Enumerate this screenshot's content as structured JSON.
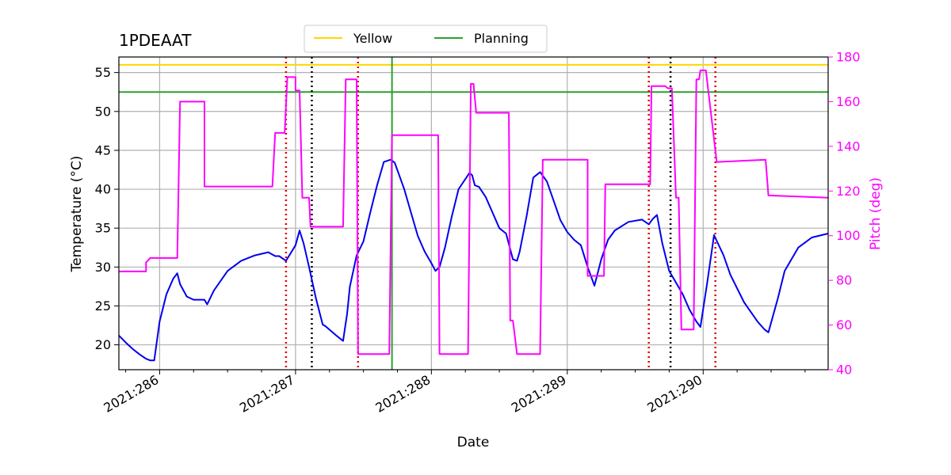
{
  "chart_data": {
    "type": "line",
    "title": "1PDEAAT",
    "xlabel": "Date",
    "ylabel": "Temperature ($^\\circ$C)",
    "ylabel_display": "Temperature (°C)",
    "y2label": "Pitch (deg)",
    "x_unit": "day of year 2021",
    "xlim": [
      285.7,
      290.92
    ],
    "ylim": [
      16.8,
      57
    ],
    "y2lim": [
      40,
      180
    ],
    "grid": true,
    "legend_position": "top-center",
    "x_ticks": [
      {
        "value": 286,
        "label": "2021:286"
      },
      {
        "value": 287,
        "label": "2021:287"
      },
      {
        "value": 288,
        "label": "2021:288"
      },
      {
        "value": 289,
        "label": "2021:289"
      },
      {
        "value": 290,
        "label": "2021:290"
      }
    ],
    "y_ticks": [
      20,
      25,
      30,
      35,
      40,
      45,
      50,
      55
    ],
    "y2_ticks": [
      40,
      60,
      80,
      100,
      120,
      140,
      160,
      180
    ],
    "x_minor_step": 0.25,
    "colors": {
      "temperature": "#0000ee",
      "pitch": "#ff00ff",
      "yellow": "#ffd700",
      "planning": "#2ca02c",
      "red_dotted": "#dd0000",
      "black_dotted": "#000000",
      "grid": "#b0b0b0"
    },
    "legend": [
      {
        "label": "Yellow",
        "color": "#ffd700"
      },
      {
        "label": "Planning",
        "color": "#2ca02c"
      }
    ],
    "hlines": [
      {
        "label": "Yellow",
        "y": 56.0,
        "color": "#ffd700"
      },
      {
        "label": "Planning",
        "y": 52.5,
        "color": "#2ca02c"
      }
    ],
    "vlines_planning": [
      287.71
    ],
    "vlines_red_dotted": [
      286.93,
      287.46,
      289.6,
      290.09
    ],
    "vlines_black_dotted": [
      287.12,
      289.76
    ],
    "series": [
      {
        "name": "Temperature",
        "axis": "left",
        "x": [
          285.7,
          285.75,
          285.8,
          285.85,
          285.9,
          285.93,
          285.96,
          286.0,
          286.05,
          286.1,
          286.13,
          286.15,
          286.2,
          286.25,
          286.3,
          286.33,
          286.35,
          286.4,
          286.5,
          286.6,
          286.7,
          286.8,
          286.85,
          286.88,
          286.93,
          287.0,
          287.03,
          287.06,
          287.1,
          287.15,
          287.2,
          287.22,
          287.3,
          287.35,
          287.38,
          287.4,
          287.45,
          287.5,
          287.55,
          287.6,
          287.65,
          287.7,
          287.73,
          287.8,
          287.85,
          287.9,
          287.95,
          288.0,
          288.03,
          288.06,
          288.1,
          288.15,
          288.2,
          288.28,
          288.3,
          288.32,
          288.35,
          288.4,
          288.45,
          288.5,
          288.55,
          288.6,
          288.63,
          288.65,
          288.7,
          288.75,
          288.8,
          288.85,
          288.9,
          288.95,
          289.0,
          289.05,
          289.1,
          289.15,
          289.2,
          289.25,
          289.3,
          289.35,
          289.45,
          289.55,
          289.6,
          289.63,
          289.66,
          289.7,
          289.75,
          289.8,
          289.85,
          289.9,
          289.95,
          289.98,
          290.03,
          290.08,
          290.15,
          290.2,
          290.3,
          290.4,
          290.45,
          290.48,
          290.55,
          290.6,
          290.7,
          290.8,
          290.92
        ],
        "y": [
          21.2,
          20.3,
          19.5,
          18.8,
          18.2,
          18.0,
          18.0,
          23.0,
          26.5,
          28.5,
          29.2,
          27.8,
          26.2,
          25.8,
          25.8,
          25.8,
          25.2,
          27.0,
          29.5,
          30.8,
          31.5,
          31.9,
          31.4,
          31.4,
          30.8,
          32.8,
          34.7,
          33.0,
          30.0,
          26.0,
          22.6,
          22.4,
          21.2,
          20.5,
          24.0,
          27.5,
          31.5,
          33.3,
          37.0,
          40.5,
          43.5,
          43.8,
          43.4,
          40.0,
          37.0,
          34.0,
          32.0,
          30.5,
          29.5,
          30.0,
          32.5,
          36.5,
          40.0,
          42.1,
          41.8,
          40.5,
          40.3,
          39.0,
          37.0,
          35.0,
          34.3,
          31.0,
          30.8,
          32.0,
          36.5,
          41.5,
          42.2,
          41.0,
          38.5,
          36.0,
          34.5,
          33.5,
          32.8,
          30.0,
          27.6,
          31.0,
          33.5,
          34.7,
          35.8,
          36.1,
          35.5,
          36.2,
          36.7,
          33.0,
          29.5,
          28.0,
          26.5,
          24.5,
          23.0,
          22.3,
          28.0,
          34.1,
          31.5,
          29.0,
          25.5,
          23.0,
          22.0,
          21.6,
          26.0,
          29.5,
          32.5,
          33.8,
          34.3
        ]
      },
      {
        "name": "Pitch",
        "axis": "right",
        "x": [
          285.7,
          285.9,
          285.9,
          285.93,
          285.93,
          286.13,
          286.15,
          286.33,
          286.33,
          286.35,
          286.35,
          286.83,
          286.85,
          286.85,
          286.92,
          286.94,
          287.0,
          287.0,
          287.03,
          287.05,
          287.05,
          287.1,
          287.11,
          287.35,
          287.37,
          287.45,
          287.46,
          287.47,
          287.69,
          287.71,
          288.05,
          288.06,
          288.27,
          288.29,
          288.31,
          288.33,
          288.35,
          288.57,
          288.58,
          288.6,
          288.6,
          288.63,
          288.64,
          288.8,
          288.82,
          289.15,
          289.15,
          289.17,
          289.27,
          289.28,
          289.61,
          289.62,
          289.72,
          289.74,
          289.77,
          289.8,
          289.82,
          289.84,
          289.93,
          289.95,
          289.97,
          289.98,
          290.02,
          290.02,
          290.1,
          290.1,
          290.46,
          290.48,
          290.92
        ],
        "y": [
          84,
          84,
          88,
          90,
          90,
          90,
          160,
          160,
          122,
          122,
          122,
          122,
          146,
          146,
          146,
          171,
          171,
          165,
          165,
          117,
          117,
          117,
          104,
          104,
          170,
          170,
          47,
          47,
          47,
          145,
          145,
          47,
          47,
          168,
          168,
          155,
          155,
          155,
          62,
          62,
          62,
          47,
          47,
          47,
          134,
          134,
          82,
          82,
          82,
          123,
          123,
          167,
          167,
          166,
          166,
          117,
          117,
          58,
          58,
          170,
          170,
          174,
          174,
          174,
          133,
          133,
          134,
          118,
          117
        ]
      }
    ]
  }
}
